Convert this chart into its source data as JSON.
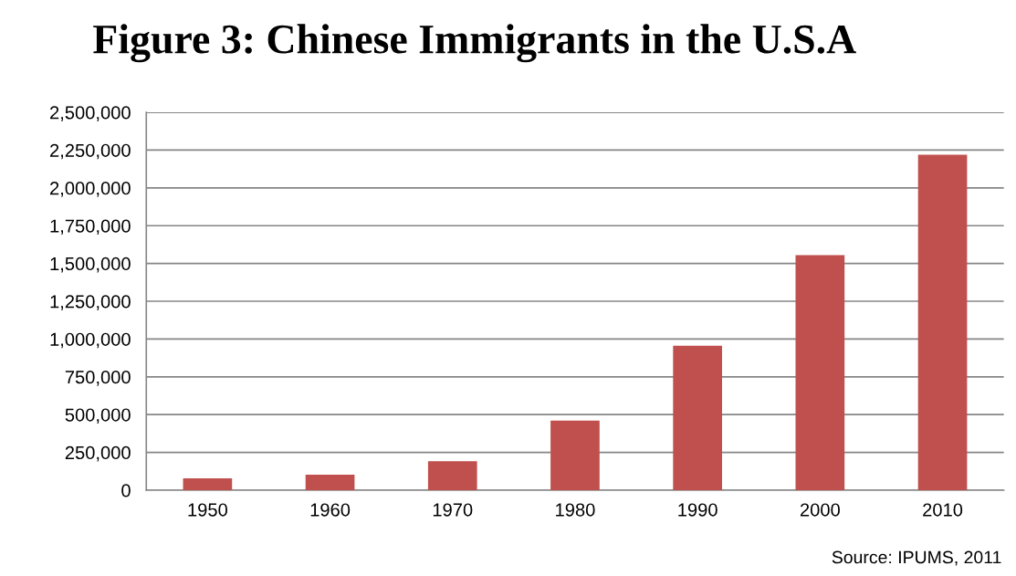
{
  "chart_data": {
    "type": "bar",
    "title": "Figure 3: Chinese Immigrants in the U.S.A",
    "categories": [
      "1950",
      "1960",
      "1970",
      "1980",
      "1990",
      "2000",
      "2010"
    ],
    "values": [
      78000,
      102000,
      192000,
      461000,
      956000,
      1555000,
      2220000
    ],
    "color": "#c0504d",
    "ylim": [
      0,
      2500000
    ],
    "yticks": [
      {
        "value": 0,
        "label": "0"
      },
      {
        "value": 250000,
        "label": "250,000"
      },
      {
        "value": 500000,
        "label": "500,000"
      },
      {
        "value": 750000,
        "label": "750,000"
      },
      {
        "value": 1000000,
        "label": "1,000,000"
      },
      {
        "value": 1250000,
        "label": "1,250,000"
      },
      {
        "value": 1500000,
        "label": "1,500,000"
      },
      {
        "value": 1750000,
        "label": "1,750,000"
      },
      {
        "value": 2000000,
        "label": "2,000,000"
      },
      {
        "value": 2250000,
        "label": "2,250,000"
      },
      {
        "value": 2500000,
        "label": "2,500,000"
      }
    ],
    "grid": "y",
    "legend": false,
    "annotations": [
      "Source: IPUMS, 2011"
    ]
  }
}
